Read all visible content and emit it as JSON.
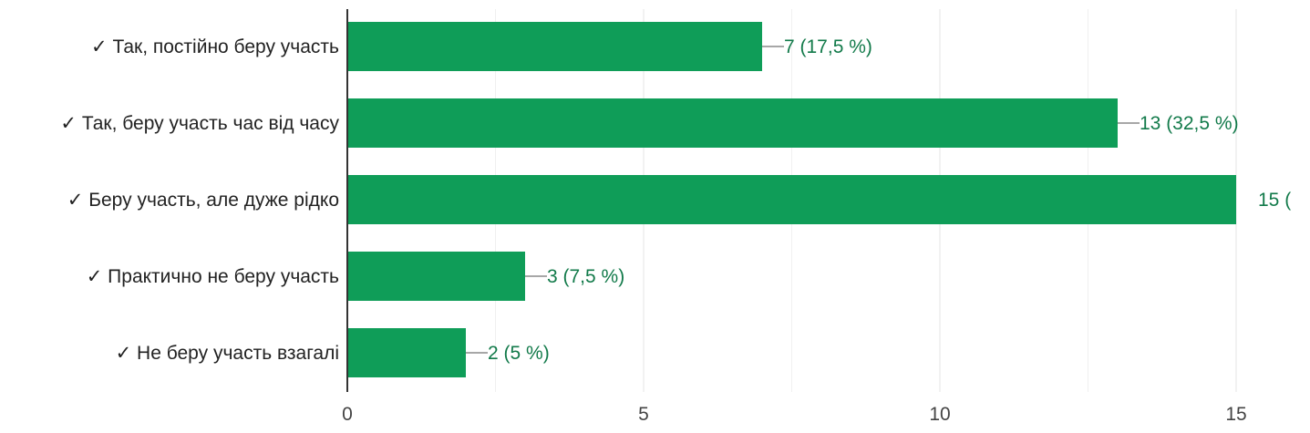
{
  "chart_data": {
    "type": "bar",
    "orientation": "horizontal",
    "categories": [
      "✓ Так, постійно беру участь",
      "✓ Так, беру участь час від часу",
      "✓ Беру участь, але дуже рідко",
      "✓ Практично не беру участь",
      "✓ Не беру участь взагалі"
    ],
    "values": [
      7,
      13,
      15,
      3,
      2
    ],
    "data_labels": [
      "7 (17,5 %)",
      "13 (32,5 %)",
      "15 (",
      "3 (7,5 %)",
      "2 (5 %)"
    ],
    "xlim": [
      0,
      15
    ],
    "x_ticks": [
      0,
      5,
      10,
      15
    ],
    "x_tick_labels": [
      "0",
      "5",
      "10",
      "15"
    ],
    "grid": true,
    "title": "",
    "xlabel": "",
    "ylabel": "",
    "colors": {
      "bar": "#0f9d58",
      "data_label": "#127a4a",
      "grid": "#e6e6e6",
      "axis": "#333333"
    }
  }
}
